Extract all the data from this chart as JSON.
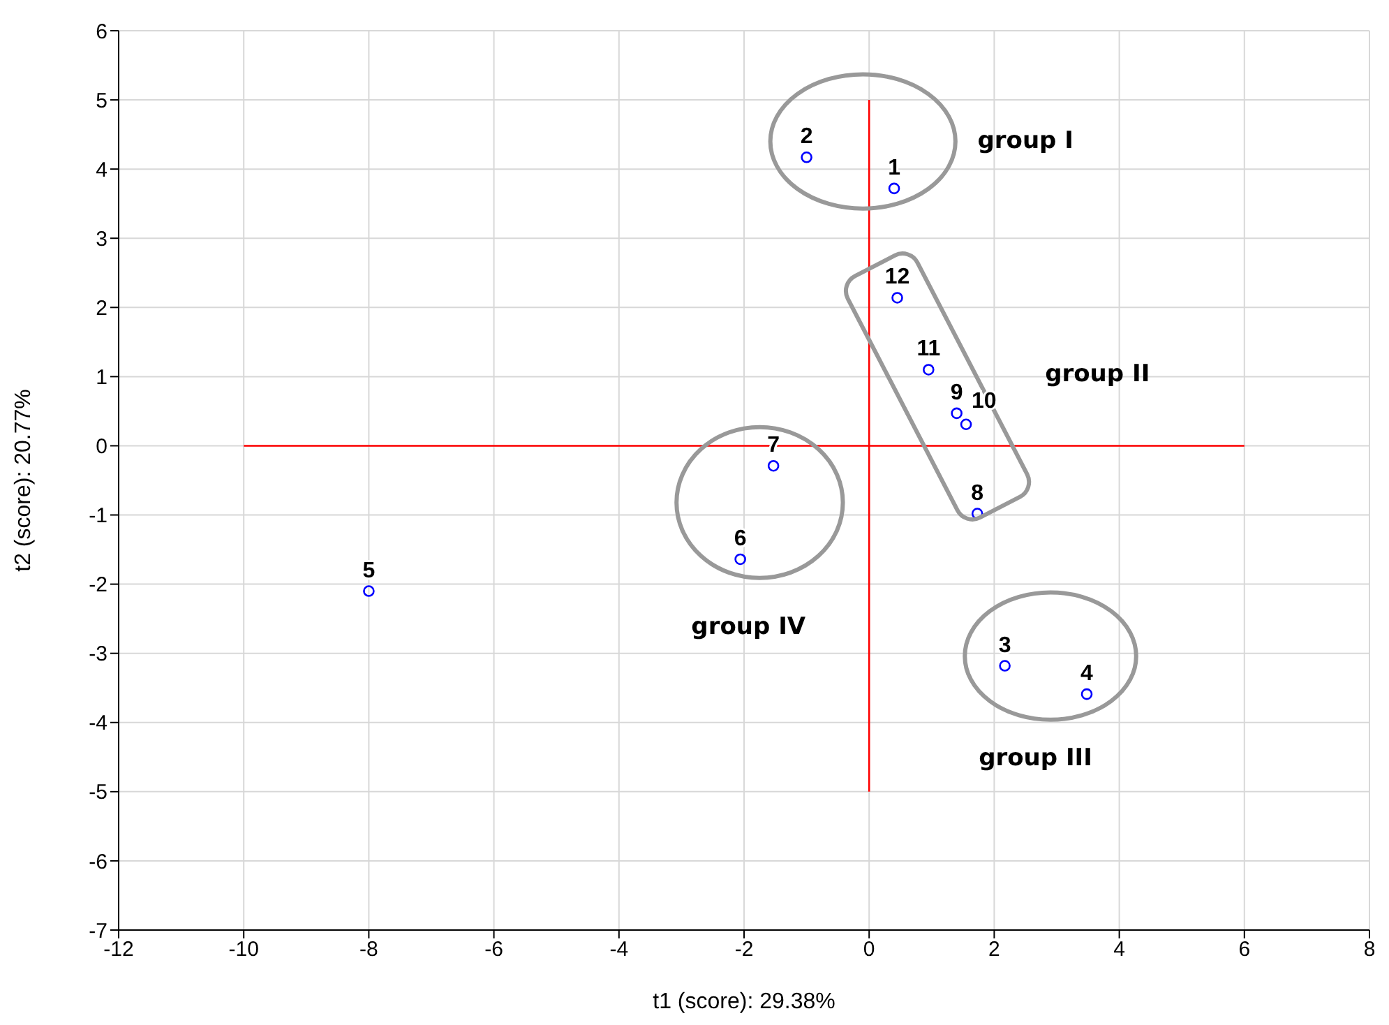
{
  "chart_data": {
    "type": "scatter",
    "xlabel": "t1 (score): 29.38%",
    "ylabel": "t2 (score): 20.77%",
    "xlim": [
      -12,
      8
    ],
    "xticks": [
      -12,
      -10,
      -8,
      -6,
      -4,
      -2,
      0,
      2,
      4,
      6,
      8
    ],
    "ylim": [
      -7,
      6
    ],
    "yticks": [
      -7,
      -6,
      -5,
      -4,
      -3,
      -2,
      -1,
      0,
      1,
      2,
      3,
      4,
      5,
      6
    ],
    "grid": true,
    "marker": "circle",
    "series": [
      {
        "type": "line",
        "marker": "none",
        "color": "#ff0000",
        "x": [
          -10,
          6
        ],
        "values": [
          0,
          0
        ]
      },
      {
        "type": "line",
        "marker": "none",
        "color": "#ff0000",
        "x": [
          0,
          0
        ],
        "values": [
          -5,
          5
        ]
      },
      {
        "color": "#0000ff",
        "x": [
          0.4,
          -1.0,
          2.17,
          3.48,
          -8.0,
          -2.06,
          -1.53,
          1.73,
          1.4,
          1.55,
          0.95,
          0.45
        ],
        "values": [
          3.72,
          4.17,
          -3.18,
          -3.59,
          -2.1,
          -1.64,
          -0.29,
          -0.98,
          0.47,
          0.31,
          1.1,
          2.14
        ]
      }
    ],
    "annotations": [
      {
        "text": "1",
        "x": 0.4,
        "y": 3.72
      },
      {
        "text": "2",
        "x": -1.0,
        "y": 4.17
      },
      {
        "text": "3",
        "x": 2.17,
        "y": -3.18
      },
      {
        "text": "4",
        "x": 3.48,
        "y": -3.59
      },
      {
        "text": "5",
        "x": -8.0,
        "y": -2.1
      },
      {
        "text": "6",
        "x": -2.06,
        "y": -1.64
      },
      {
        "text": "7",
        "x": -1.53,
        "y": -0.29
      },
      {
        "text": "8",
        "x": 1.73,
        "y": -0.98
      },
      {
        "text": "9",
        "x": 1.4,
        "y": 0.47
      },
      {
        "text": "10",
        "x": 1.55,
        "y": 0.31
      },
      {
        "text": "11",
        "x": 0.95,
        "y": 1.1
      },
      {
        "text": "12",
        "x": 0.45,
        "y": 2.14
      },
      "group I",
      "group II",
      "group III",
      "group IV"
    ]
  }
}
